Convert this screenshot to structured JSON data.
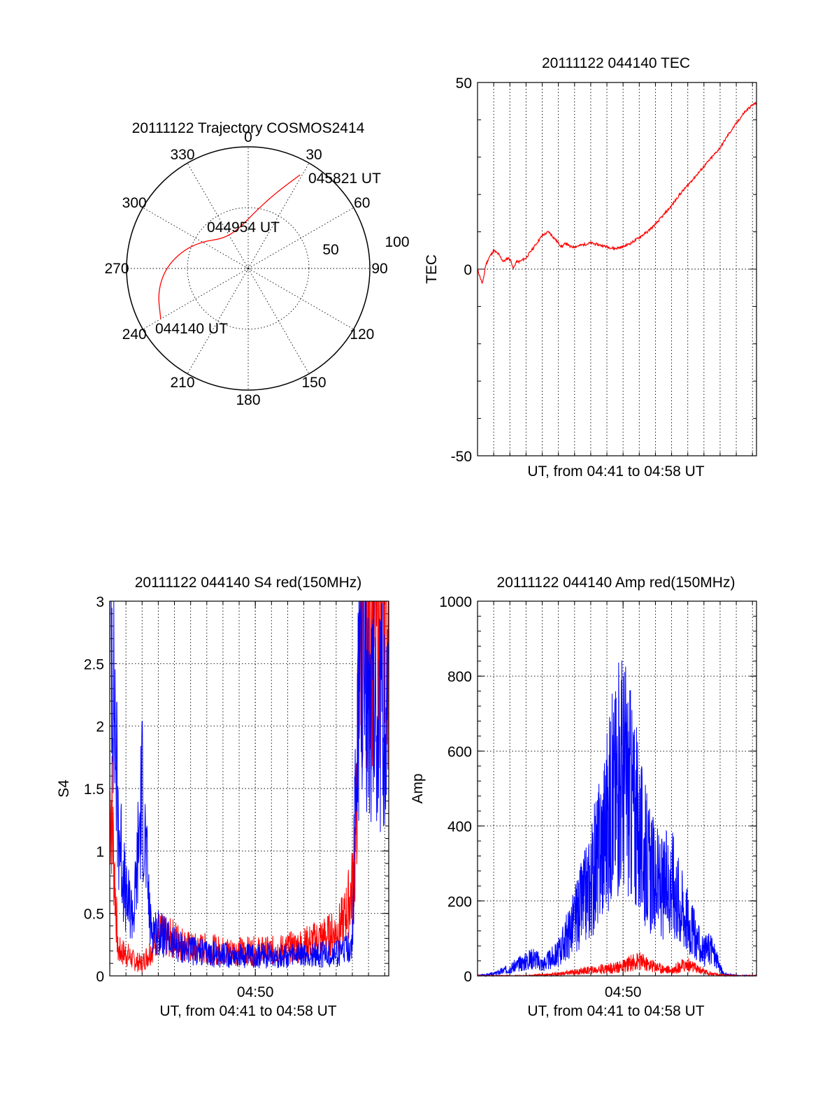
{
  "chart_data": [
    {
      "type": "polar",
      "title": "20111122 Trajectory COSMOS2414",
      "angle_labels": [
        "0",
        "30",
        "60",
        "90",
        "120",
        "150",
        "180",
        "210",
        "240",
        "270",
        "300",
        "330"
      ],
      "radial_labels": [
        "50",
        "100"
      ],
      "rlim": [
        0,
        100
      ],
      "grid": true,
      "annotations": [
        "045821 UT",
        "044954 UT",
        "044140 UT"
      ],
      "series": [
        {
          "color": "#ff0000",
          "points": [
            {
              "az": 240,
              "r": 83
            },
            {
              "az": 255,
              "r": 77
            },
            {
              "az": 270,
              "r": 68
            },
            {
              "az": 285,
              "r": 56
            },
            {
              "az": 300,
              "r": 44
            },
            {
              "az": 320,
              "r": 32
            },
            {
              "az": 345,
              "r": 33
            },
            {
              "az": 8,
              "r": 48
            },
            {
              "az": 20,
              "r": 66
            },
            {
              "az": 29,
              "r": 88
            }
          ]
        }
      ]
    },
    {
      "type": "line",
      "title": "20111122 044140 TEC",
      "xlabel": "UT, from 04:41 to 04:58 UT",
      "ylabel": "TEC",
      "xlim": [
        0,
        17.25
      ],
      "ylim": [
        -50,
        50
      ],
      "yticks": [
        "-50",
        "0",
        "50"
      ],
      "grid": true,
      "series": [
        {
          "color": "#ff0000",
          "x": [
            0,
            0.15,
            0.3,
            0.35,
            0.5,
            0.7,
            1.0,
            1.3,
            1.6,
            1.9,
            2.1,
            2.2,
            2.4,
            2.6,
            3.0,
            3.5,
            4.0,
            4.4,
            4.8,
            5.2,
            5.5,
            5.7,
            6.0,
            6.5,
            7.0,
            7.5,
            8.0,
            8.5,
            9.0,
            9.5,
            10.0,
            10.5,
            11.0,
            11.5,
            12.0,
            12.5,
            13.0,
            13.5,
            14.0,
            14.5,
            15.0,
            15.5,
            16.0,
            16.5,
            17.0,
            17.25
          ],
          "y": [
            0,
            -2,
            -4,
            -3,
            1,
            3,
            5,
            4,
            2,
            3,
            2,
            0,
            2,
            2,
            3,
            6,
            9,
            10,
            8,
            6,
            7,
            6,
            6,
            6.5,
            7,
            6.5,
            6,
            5.5,
            6,
            7,
            8.5,
            10,
            12,
            14.5,
            17,
            20,
            22.5,
            25,
            27.5,
            30,
            32.5,
            36,
            39,
            42,
            44,
            44.5
          ]
        }
      ]
    },
    {
      "type": "line",
      "title": "20111122 044140 S4 red(150MHz)",
      "xlabel": "UT, from 04:41 to 04:58 UT",
      "ylabel": "S4",
      "xlim": [
        0,
        17.25
      ],
      "ylim": [
        0,
        3
      ],
      "xticks": [
        "04:50"
      ],
      "yticks": [
        "0",
        "0.5",
        "1",
        "1.5",
        "2",
        "2.5",
        "3"
      ],
      "grid": true,
      "series": [
        {
          "color": "#ff0000",
          "x": [
            0.1,
            0.5,
            1.0,
            1.5,
            2.0,
            2.5,
            3.0,
            3.5,
            4.0,
            5,
            6,
            7,
            8,
            9,
            10,
            11,
            12,
            13,
            14,
            14.5,
            15.0,
            15.2,
            15.5,
            16,
            17
          ],
          "y": [
            1.4,
            0.2,
            0.18,
            0.12,
            0.1,
            0.2,
            0.35,
            0.3,
            0.3,
            0.22,
            0.22,
            0.2,
            0.2,
            0.2,
            0.2,
            0.22,
            0.25,
            0.3,
            0.35,
            0.45,
            0.7,
            1.0,
            3,
            3,
            3
          ]
        },
        {
          "color": "#0000ff",
          "x": [
            0.1,
            0.5,
            1.0,
            1.5,
            2.0,
            2.5,
            3.0,
            3.5,
            4.0,
            5,
            6,
            7,
            8,
            9,
            10,
            11,
            12,
            13,
            14,
            14.5,
            15.0,
            15.2,
            15.5,
            16,
            17
          ],
          "y": [
            3,
            1.3,
            0.6,
            0.5,
            1.5,
            0.4,
            0.35,
            0.3,
            0.25,
            0.2,
            0.18,
            0.17,
            0.16,
            0.16,
            0.16,
            0.16,
            0.16,
            0.17,
            0.18,
            0.2,
            0.25,
            1.5,
            2.6,
            2.3,
            2.0
          ]
        }
      ]
    },
    {
      "type": "line",
      "title": "20111122 044140 Amp red(150MHz)",
      "xlabel": "UT, from 04:41 to 04:58 UT",
      "ylabel": "Amp",
      "xlim": [
        0,
        17.25
      ],
      "ylim": [
        0,
        1000
      ],
      "xticks": [
        "04:50"
      ],
      "yticks": [
        "0",
        "200",
        "400",
        "600",
        "800",
        "1000"
      ],
      "grid": true,
      "series": [
        {
          "color": "#0000ff",
          "x": [
            0,
            1,
            2,
            3,
            3.5,
            4,
            5,
            6,
            7,
            7.5,
            8,
            8.5,
            9,
            9.5,
            10,
            10.5,
            11,
            11.5,
            12,
            12.5,
            13,
            13.5,
            14,
            14.4,
            14.8,
            15.2,
            16,
            17.25
          ],
          "y": [
            0,
            5,
            20,
            40,
            50,
            30,
            60,
            150,
            250,
            330,
            420,
            500,
            560,
            480,
            380,
            300,
            250,
            230,
            260,
            200,
            150,
            100,
            60,
            80,
            40,
            5,
            0,
            0
          ]
        },
        {
          "color": "#ff0000",
          "x": [
            0,
            3,
            5,
            6,
            7,
            8,
            8.5,
            9,
            9.5,
            10,
            10.5,
            11,
            11.5,
            12,
            12.5,
            13,
            13.5,
            14,
            14.5,
            15,
            16,
            17.25
          ],
          "y": [
            0,
            0,
            5,
            10,
            15,
            20,
            22,
            25,
            35,
            40,
            30,
            25,
            18,
            15,
            25,
            30,
            20,
            12,
            5,
            2,
            0,
            0
          ]
        }
      ]
    }
  ]
}
